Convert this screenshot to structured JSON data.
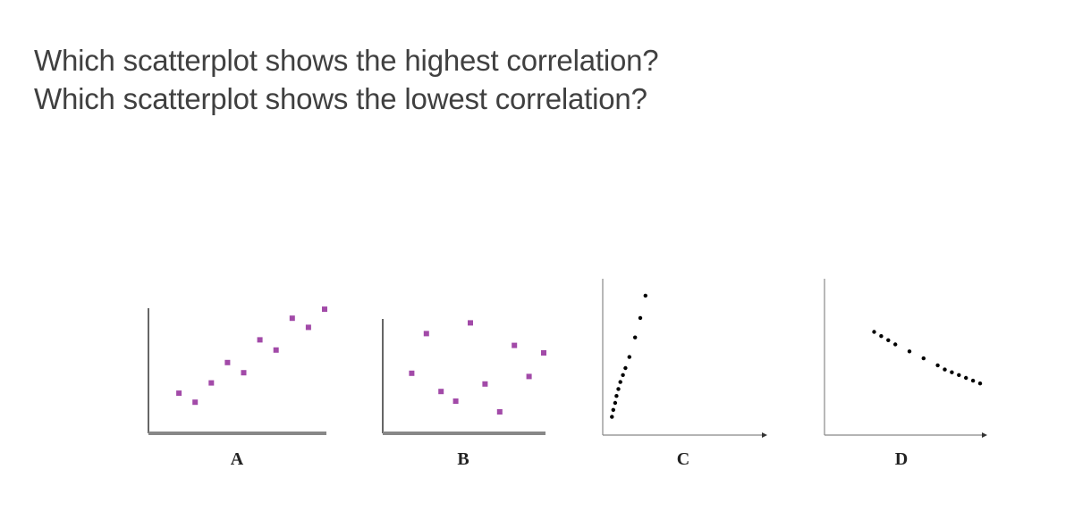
{
  "slide": {
    "question_1": "Which scatterplot shows the highest correlation?",
    "question_2": "Which scatterplot shows the lowest correlation?"
  },
  "colors": {
    "text": "#404040",
    "purple_point": "#a24aa8",
    "black_point": "#000000",
    "axis_gray": "#888888"
  },
  "chart_data": [
    {
      "type": "scatter",
      "label": "A",
      "marker": "square",
      "color": "#a24aa8",
      "xlim": [
        0,
        10
      ],
      "ylim": [
        0,
        10
      ],
      "points": [
        [
          1,
          2.2
        ],
        [
          2,
          1.4
        ],
        [
          3,
          3.1
        ],
        [
          4,
          4.9
        ],
        [
          5,
          4
        ],
        [
          6,
          6.9
        ],
        [
          7,
          6
        ],
        [
          8,
          8.8
        ],
        [
          9,
          8
        ],
        [
          10,
          9.6
        ]
      ]
    },
    {
      "type": "scatter",
      "label": "B",
      "marker": "square",
      "color": "#a24aa8",
      "xlim": [
        0,
        10
      ],
      "ylim": [
        0,
        10
      ],
      "points": [
        [
          1,
          4.6
        ],
        [
          2,
          8.3
        ],
        [
          3,
          2.9
        ],
        [
          4,
          2
        ],
        [
          5,
          9.3
        ],
        [
          6,
          3.6
        ],
        [
          7,
          1
        ],
        [
          8,
          7.2
        ],
        [
          9,
          4.3
        ],
        [
          10,
          6.5
        ]
      ]
    },
    {
      "type": "scatter",
      "label": "C",
      "marker": "dot",
      "color": "#000000",
      "xlim": [
        0,
        10
      ],
      "ylim": [
        0,
        10
      ],
      "points": [
        [
          0.6,
          0.6
        ],
        [
          0.8,
          1.1
        ],
        [
          1.1,
          1.6
        ],
        [
          1.3,
          2.1
        ],
        [
          1.6,
          2.6
        ],
        [
          1.9,
          3.1
        ],
        [
          2.3,
          3.6
        ],
        [
          2.7,
          4.1
        ],
        [
          3.3,
          4.9
        ],
        [
          4.2,
          6.3
        ],
        [
          5,
          7.7
        ],
        [
          5.8,
          9.3
        ]
      ]
    },
    {
      "type": "scatter",
      "label": "D",
      "marker": "dot",
      "color": "#000000",
      "xlim": [
        0,
        10
      ],
      "ylim": [
        0,
        10
      ],
      "points": [
        [
          2.5,
          6.7
        ],
        [
          3,
          6.4
        ],
        [
          3.5,
          6.1
        ],
        [
          4,
          5.8
        ],
        [
          5,
          5.3
        ],
        [
          6,
          4.8
        ],
        [
          7,
          4.3
        ],
        [
          7.5,
          4.0
        ],
        [
          8,
          3.8
        ],
        [
          8.5,
          3.6
        ],
        [
          9,
          3.4
        ],
        [
          9.5,
          3.2
        ],
        [
          10,
          3.0
        ]
      ]
    }
  ]
}
